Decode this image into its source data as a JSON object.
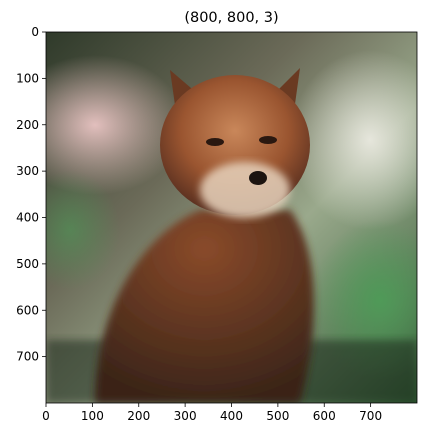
{
  "chart_data": {
    "type": "image",
    "title": "(800, 800, 3)",
    "xlim": [
      0,
      800
    ],
    "ylim": [
      800,
      0
    ],
    "xticks": [
      0,
      100,
      200,
      300,
      400,
      500,
      600,
      700
    ],
    "yticks": [
      0,
      100,
      200,
      300,
      400,
      500,
      600,
      700
    ]
  }
}
